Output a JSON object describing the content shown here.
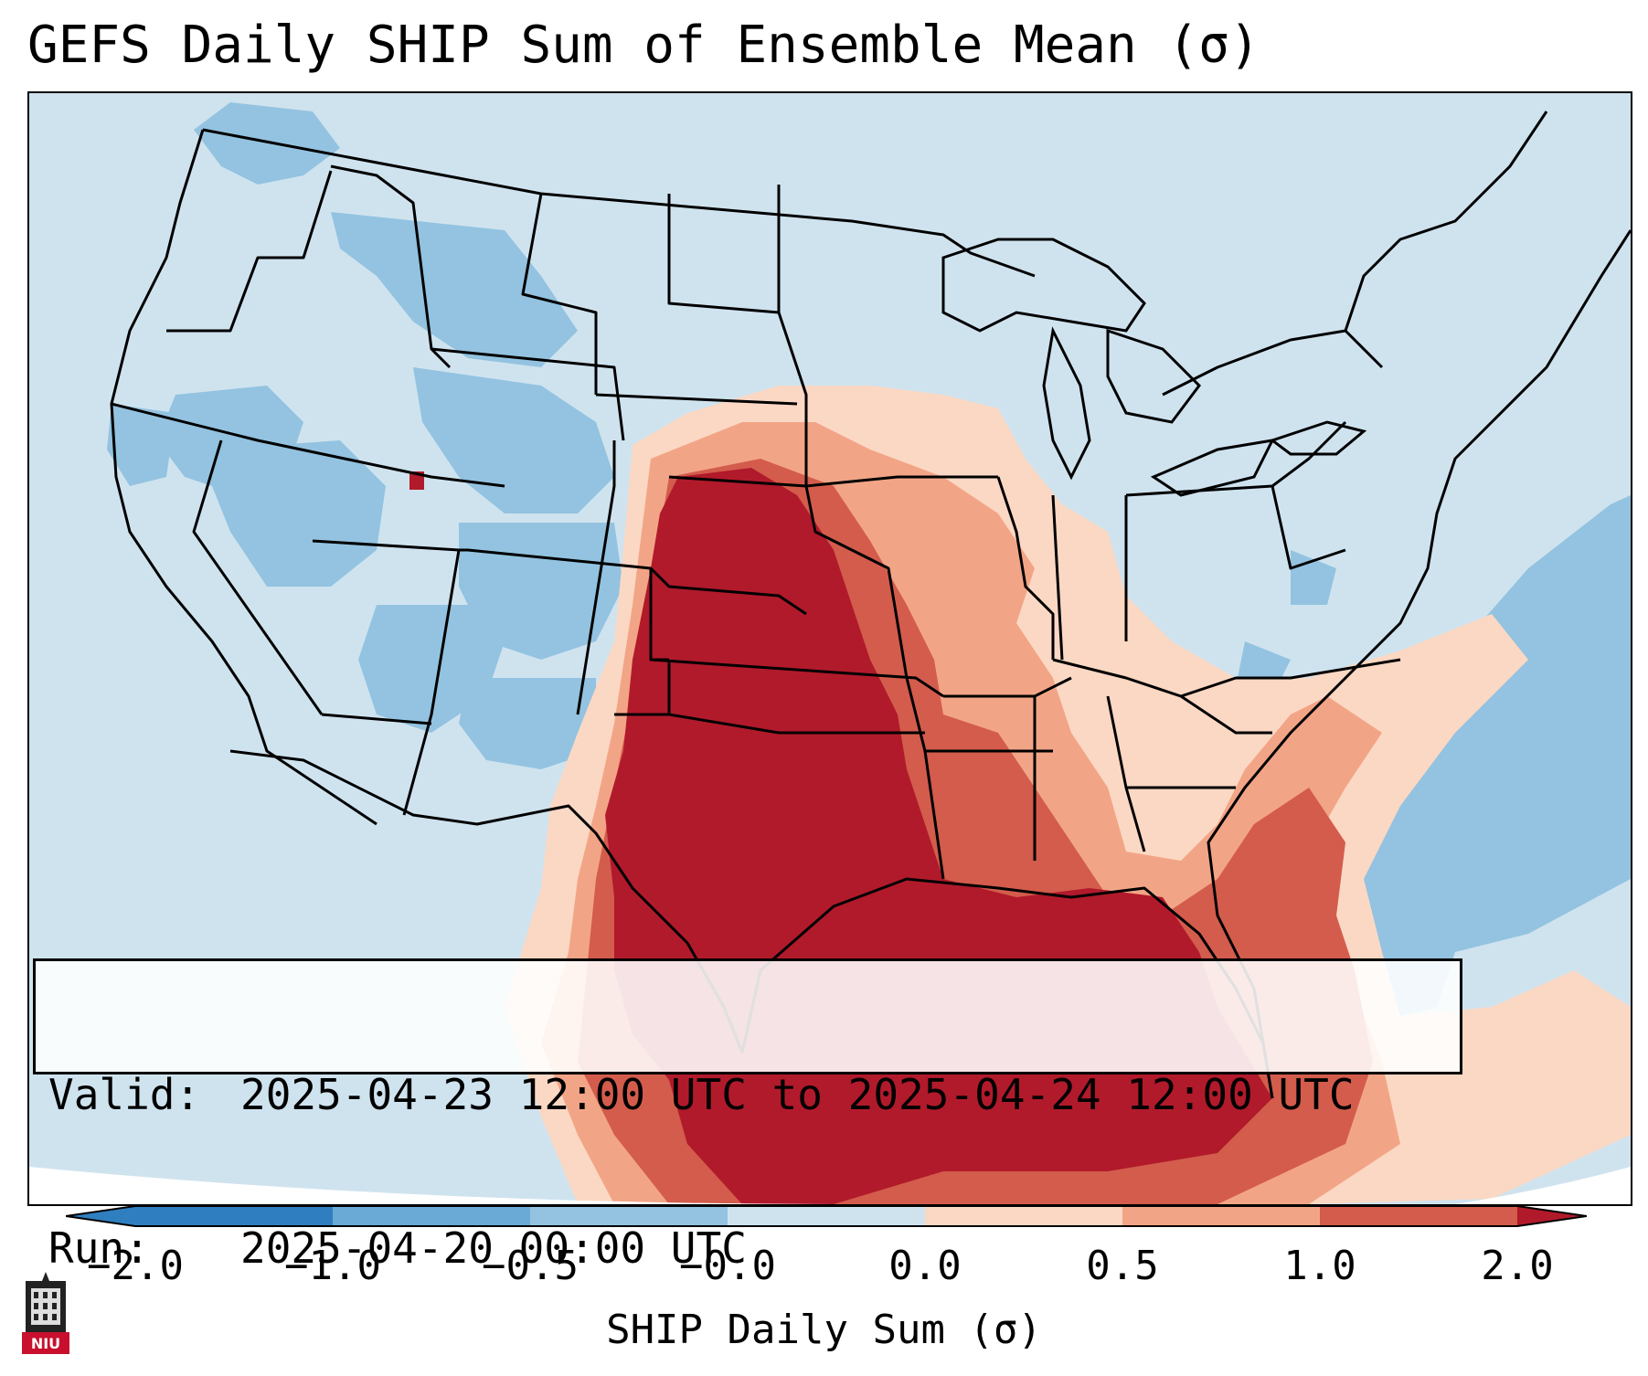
{
  "title": "GEFS Daily SHIP Sum of Ensemble Mean (σ)",
  "info": {
    "valid_label": "Valid:",
    "valid_value": "2025-04-23 12:00 UTC to 2025-04-24 12:00 UTC",
    "run_label": "Run:",
    "run_value": "2025-04-20 00:00 UTC"
  },
  "colorbar": {
    "label": "SHIP Daily Sum (σ)",
    "ticks": [
      "−2.0",
      "−1.0",
      "−0.5",
      "−0.0",
      "0.0",
      "0.5",
      "1.0",
      "2.0"
    ],
    "colors": [
      "#2f7fc0",
      "#6aaad6",
      "#93c3e0",
      "#cfe3ef",
      "#f6f6f6",
      "#fbd8c4",
      "#f2a586",
      "#d35c4c",
      "#b11a2b"
    ]
  },
  "map": {
    "region": "Continental United States, Gulf of Mexico, western Atlantic",
    "field_summary": "Positive anomalies (>2.0 sigma) over Texas, Oklahoma, Kansas and the Gulf of Mexico; slight negative anomalies across the western US and offshore Atlantic."
  },
  "logo": {
    "text": "NIU",
    "icon": "niu-tower-logo"
  }
}
